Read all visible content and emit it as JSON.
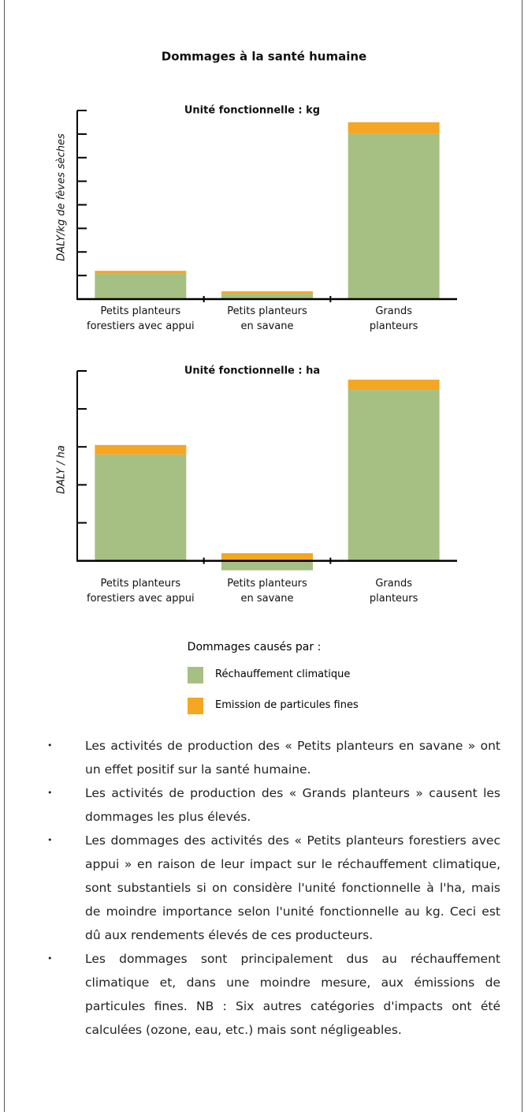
{
  "title": "Dommages à la santé humaine",
  "chart_data": [
    {
      "type": "bar",
      "stacked": true,
      "subtitle": "Unité fonctionnelle : kg",
      "y_label": "DALY/kg de fèves sèches",
      "categories": [
        "Petits planteurs forestiers avec appui",
        "Petits planteurs en savane",
        "Grands planteurs"
      ],
      "series": [
        {
          "name": "Réchauffement climatique",
          "color": "#a5c082",
          "values": [
            1.1,
            0.23,
            7.0
          ]
        },
        {
          "name": "Emission de particules fines",
          "color": "#f5a623",
          "values": [
            0.1,
            0.1,
            0.5
          ]
        }
      ],
      "ylim": [
        0,
        8
      ],
      "yticks": [
        1,
        2,
        3,
        4,
        5,
        6,
        7,
        8
      ]
    },
    {
      "type": "bar",
      "stacked": true,
      "subtitle": "Unité fonctionnelle : ha",
      "y_label": "DALY / ha",
      "categories": [
        "Petits planteurs forestiers avec appui",
        "Petits planteurs en savane",
        "Grands planteurs"
      ],
      "series": [
        {
          "name": "Réchauffement climatique",
          "color": "#a5c082",
          "values": [
            2.8,
            -0.25,
            4.5
          ]
        },
        {
          "name": "Emission de particules fines",
          "color": "#f5a623",
          "values": [
            0.25,
            0.2,
            0.27
          ]
        }
      ],
      "ylim": [
        -0.3,
        5
      ],
      "yticks": [
        1,
        2,
        3,
        4,
        5
      ]
    }
  ],
  "legend_title": "Dommages causés par :",
  "bullets": [
    "Les activités de production des « Petits planteurs en savane » ont un effet positif sur la santé humaine.",
    "Les activités de production des « Grands planteurs » causent les dommages les plus élevés.",
    "Les dommages des activités des « Petits planteurs forestiers avec appui » en raison de leur impact sur le réchauffement climatique, sont substantiels si on considère l'unité fonctionnelle à l'ha, mais de moindre importance selon l'unité fonctionnelle au kg. Ceci est dû aux rendements élevés de ces producteurs.",
    "Les dommages sont principalement dus au réchauffement climatique et, dans une moindre mesure, aux émissions de particules fines. NB : Six autres catégories d'impacts ont été calculées (ozone, eau, etc.) mais sont négligeables."
  ]
}
